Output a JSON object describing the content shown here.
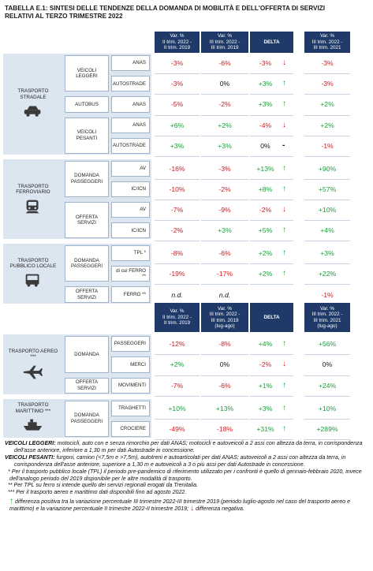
{
  "title": "TABELLA E.1: SINTESI DELLE TENDENZE DELLA DOMANDA DI MOBILITÀ E DELL'OFFERTA DI SERVIZI RELATIVI AL TERZO TRIMESTRE 2022",
  "tables": [
    {
      "headers": [
        [
          "Var. %",
          "II trim. 2022 -",
          "II trim. 2019"
        ],
        [
          "Var. %",
          "III trim. 2022 -",
          "III trim. 2019"
        ],
        [
          "DELTA"
        ],
        [
          "Var. %",
          "III trim. 2022 -",
          "III trim. 2021"
        ]
      ],
      "groups": [
        {
          "label": "TRASPORTO STRADALE",
          "subgroups": [
            {
              "label": "VEICOLI LEGGERI",
              "rows": [
                {
                  "item": "ANAS",
                  "values": [
                    "-3%",
                    "-6%",
                    "-3%",
                    "-3%"
                  ],
                  "trend": "↓"
                },
                {
                  "item": "AUTOSTRADE",
                  "values": [
                    "-3%",
                    "0%",
                    "+3%",
                    "-3%"
                  ],
                  "trend": "↑"
                }
              ]
            },
            {
              "label": "AUTOBUS",
              "rows": [
                {
                  "item": "ANAS",
                  "values": [
                    "-5%",
                    "-2%",
                    "+3%",
                    "+2%"
                  ],
                  "trend": "↑"
                }
              ]
            },
            {
              "label": "VEICOLI PESANTI",
              "rows": [
                {
                  "item": "ANAS",
                  "values": [
                    "+6%",
                    "+2%",
                    "-4%",
                    "+2%"
                  ],
                  "trend": "↓"
                },
                {
                  "item": "AUTOSTRADE",
                  "values": [
                    "+3%",
                    "+3%",
                    "0%",
                    "-1%"
                  ],
                  "trend": "-"
                }
              ]
            }
          ]
        },
        {
          "label": "TRASPORTO FERROVIARIO",
          "subgroups": [
            {
              "label": "DOMANDA PASSEGGERI",
              "rows": [
                {
                  "item": "AV",
                  "values": [
                    "-16%",
                    "-3%",
                    "+13%",
                    "+90%"
                  ],
                  "trend": "↑"
                },
                {
                  "item": "IC/ICN",
                  "values": [
                    "-10%",
                    "-2%",
                    "+8%",
                    "+57%"
                  ],
                  "trend": "↑"
                }
              ]
            },
            {
              "label": "OFFERTA SERVIZI",
              "rows": [
                {
                  "item": "AV",
                  "values": [
                    "-7%",
                    "-9%",
                    "-2%",
                    "+10%"
                  ],
                  "trend": "↓"
                },
                {
                  "item": "IC/ICN",
                  "values": [
                    "-2%",
                    "+3%",
                    "+5%",
                    "+4%"
                  ],
                  "trend": "↑"
                }
              ]
            }
          ]
        },
        {
          "label": "TRASPORTO PUBBLICO LOCALE",
          "subgroups": [
            {
              "label": "DOMANDA PASSEGGERI",
              "rows": [
                {
                  "item": "TPL *",
                  "values": [
                    "-8%",
                    "-6%",
                    "+2%",
                    "+3%"
                  ],
                  "trend": "↑"
                },
                {
                  "item": "di cui FERRO **",
                  "values": [
                    "-19%",
                    "-17%",
                    "+2%",
                    "+22%"
                  ],
                  "trend": "↑"
                }
              ]
            },
            {
              "label": "OFFERTA SERVIZI",
              "rows": [
                {
                  "item": "FERRO **",
                  "values": [
                    "n.d.",
                    "n.d.",
                    null,
                    "-1%"
                  ]
                }
              ]
            }
          ]
        }
      ]
    },
    {
      "headers": [
        [
          "Var. %",
          "II trim. 2022 -",
          "II trim. 2019"
        ],
        [
          "Var. %",
          "III trim. 2022 -",
          "III trim. 2019",
          "(lug-ago)"
        ],
        [
          "DELTA"
        ],
        [
          "Var. %",
          "III trim. 2022 -",
          "III trim. 2021",
          "(lug-ago)"
        ]
      ],
      "groups": [
        {
          "label": "TRASPORTO AEREO ***",
          "subgroups": [
            {
              "label": "DOMANDA",
              "rows": [
                {
                  "item": "PASSEGGERI",
                  "values": [
                    "-12%",
                    "-8%",
                    "+4%",
                    "+56%"
                  ],
                  "trend": "↑"
                },
                {
                  "item": "MERCI",
                  "values": [
                    "+2%",
                    "0%",
                    "-2%",
                    "0%"
                  ],
                  "trend": "↓"
                }
              ]
            },
            {
              "label": "OFFERTA SERVIZI",
              "rows": [
                {
                  "item": "MOVIMENTI",
                  "values": [
                    "-7%",
                    "-6%",
                    "+1%",
                    "+24%"
                  ],
                  "trend": "↑"
                }
              ]
            }
          ]
        },
        {
          "label": "TRASPORTO MARITTIMO ***",
          "subgroups": [
            {
              "label": "DOMANDA PASSEGGERI",
              "rows": [
                {
                  "item": "TRAGHETTI",
                  "values": [
                    "+10%",
                    "+13%",
                    "+3%",
                    "+10%"
                  ],
                  "trend": "↑"
                },
                {
                  "item": "CROCIERE",
                  "values": [
                    "-49%",
                    "-18%",
                    "+31%",
                    "+289%"
                  ],
                  "trend": "↑"
                }
              ]
            }
          ]
        }
      ]
    }
  ],
  "notes": [
    {
      "lead": "VEICOLI LEGGERI:",
      "text": "motocicli, auto con e senza rimorchio per dati ANAS; motocicli e autoveicoli a 2 assi con altezza da terra, in corrispondenza dell'asse anteriore, inferiore a 1,30 m per dati Autostrade in concessione."
    },
    {
      "lead": "VEICOLI PESANTI:",
      "text": "furgoni, camion (<7,5m e >7,5m), autotreni e autoarticolati per dati ANAS; autoveicoli a 2 assi con altezza da terra, in corrispondenza dell'asse anteriore, superiore a 1,30 m e autoveicoli a 3 o più assi per dati Autostrade in concessione."
    },
    {
      "text": "* Per il trasporto pubblico locale (TPL) il periodo pre-pandemico di riferimento utilizzato per i confronti è quello di gennaio-febbraio 2020, invece dell'analogo periodo del 2019 disponibile per le altre modalità di trasporto."
    },
    {
      "text": "** Per TPL su ferro si intende quello dei servizi regionali erogati da Trenitalia."
    },
    {
      "text": "*** Per il trasporto aereo e marittimo dati disponibili fino ad agosto 2022."
    }
  ],
  "legend": {
    "up": "↑",
    "up_text": "differenza positiva tra la variazione percentuale III trimestre 2022-III trimestre 2019 (periodo luglio-agosto nel caso del trasporto aereo e marittimo) e la variazione percentuale II trimestre 2022-II trimestre 2019;",
    "down": "↓",
    "down_text": "differenza negativa."
  }
}
